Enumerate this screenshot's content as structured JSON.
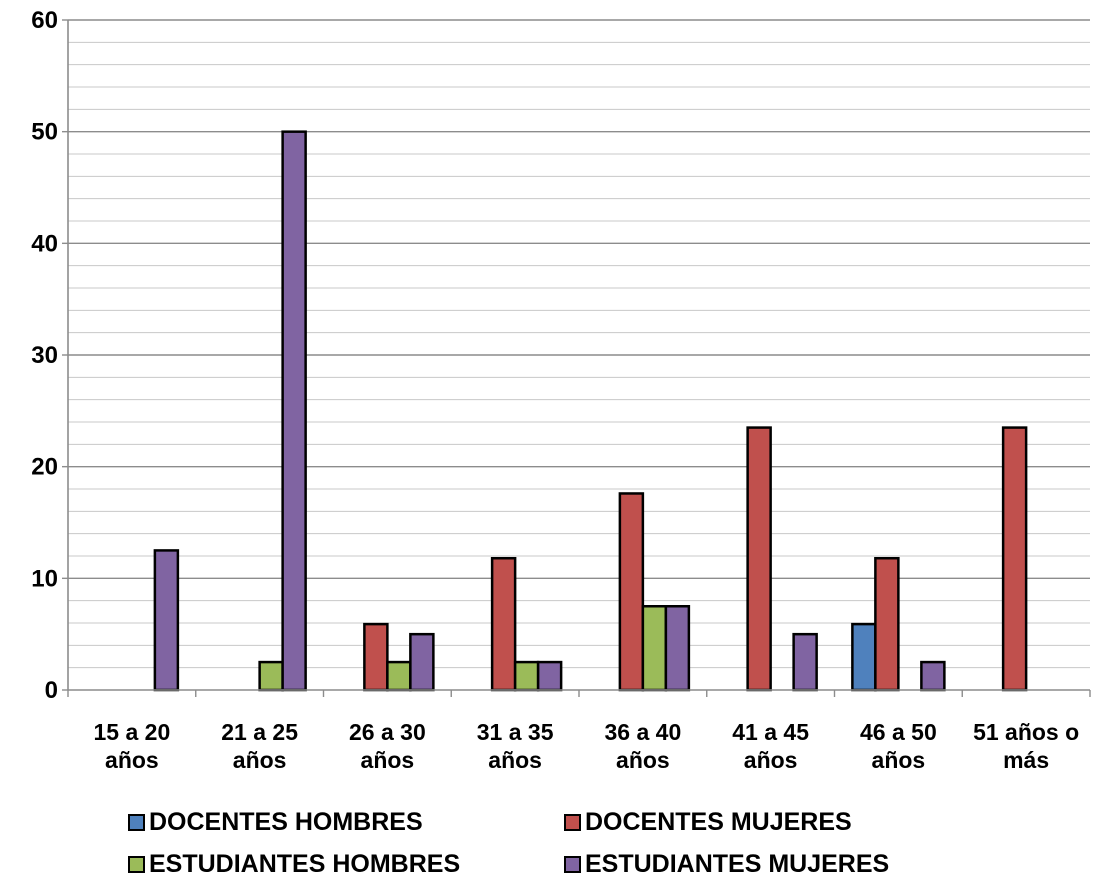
{
  "chart_data": {
    "type": "bar",
    "title": "",
    "xlabel": "",
    "ylabel": "",
    "ylim": [
      0,
      60
    ],
    "y_ticks": [
      "0",
      "10",
      "20",
      "30",
      "40",
      "50",
      "60"
    ],
    "grid": true,
    "legend_position": "bottom",
    "categories": [
      [
        "15 a 20",
        "años"
      ],
      [
        "21 a 25",
        "años"
      ],
      [
        "26 a 30",
        "años"
      ],
      [
        "31 a 35",
        "años"
      ],
      [
        "36 a 40",
        "años"
      ],
      [
        "41 a 45",
        "años"
      ],
      [
        "46 a 50",
        "años"
      ],
      [
        "51 años o",
        "más"
      ]
    ],
    "series": [
      {
        "name": "DOCENTES HOMBRES",
        "color": "#4F81BD",
        "values": [
          0,
          0,
          0,
          0,
          0,
          0,
          5.9,
          0
        ]
      },
      {
        "name": "DOCENTES MUJERES",
        "color": "#C0504D",
        "values": [
          0,
          0,
          5.9,
          11.8,
          17.6,
          23.5,
          11.8,
          23.5
        ]
      },
      {
        "name": "ESTUDIANTES HOMBRES",
        "color": "#9BBB59",
        "values": [
          0,
          2.5,
          2.5,
          2.5,
          7.5,
          0,
          0,
          0
        ]
      },
      {
        "name": "ESTUDIANTES MUJERES",
        "color": "#8064A2",
        "values": [
          12.5,
          50,
          5,
          2.5,
          7.5,
          5,
          2.5,
          0
        ]
      }
    ]
  }
}
